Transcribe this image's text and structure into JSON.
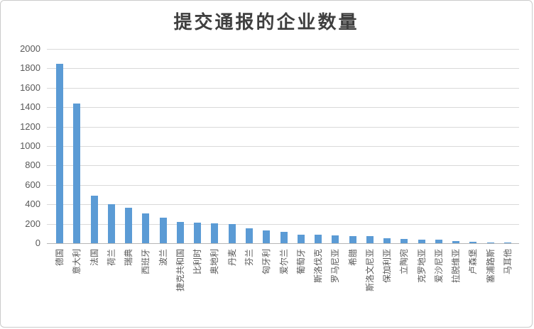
{
  "chart_data": {
    "type": "bar",
    "title": "提交通报的企业数量",
    "categories": [
      "德国",
      "意大利",
      "法国",
      "荷兰",
      "瑞典",
      "西班牙",
      "波兰",
      "捷克共和国",
      "比利时",
      "奥地利",
      "丹麦",
      "芬兰",
      "匈牙利",
      "爱尔兰",
      "葡萄牙",
      "斯洛伐克",
      "罗马尼亚",
      "希腊",
      "斯洛文尼亚",
      "保加利亚",
      "立陶宛",
      "克罗地亚",
      "爱沙尼亚",
      "拉脱维亚",
      "卢森堡",
      "塞浦路斯",
      "马耳他"
    ],
    "values": [
      1850,
      1440,
      490,
      405,
      365,
      305,
      265,
      220,
      210,
      205,
      195,
      150,
      130,
      120,
      90,
      85,
      80,
      75,
      70,
      50,
      45,
      40,
      40,
      20,
      15,
      10,
      5
    ],
    "xlabel": "",
    "ylabel": "",
    "ylim": [
      0,
      2000
    ],
    "ytick_step": 200,
    "yticks": [
      0,
      200,
      400,
      600,
      800,
      1000,
      1200,
      1400,
      1600,
      1800,
      2000
    ],
    "grid": true,
    "legend": "none",
    "bar_color": "#5b9bd5",
    "gridline_color": "#d9d9d9",
    "axis_line_color": "#b7b7b7",
    "tick_label_color": "#595959",
    "title_color": "#3f3f3f"
  }
}
